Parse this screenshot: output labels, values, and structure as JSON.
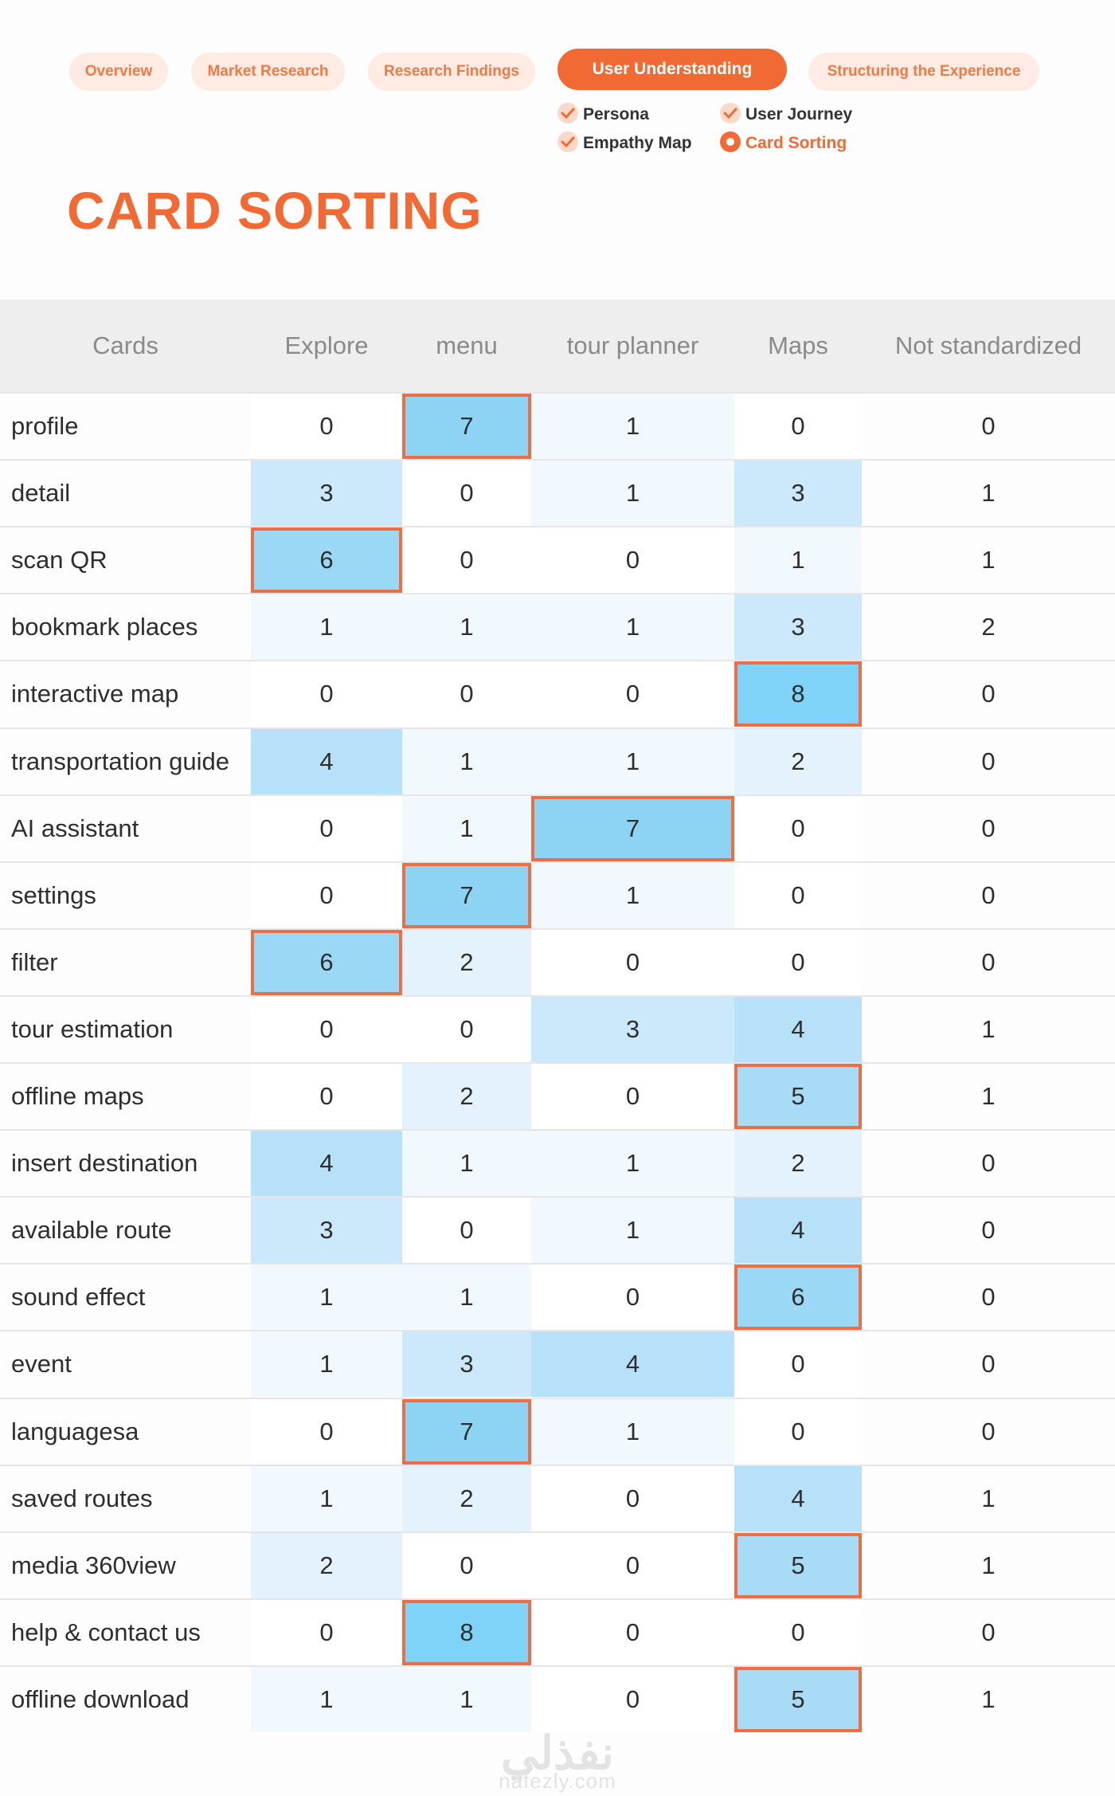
{
  "nav": {
    "tabs": [
      {
        "label": "Overview",
        "active": false
      },
      {
        "label": "Market Research",
        "active": false
      },
      {
        "label": "Research Findings",
        "active": false
      },
      {
        "label": "User Understanding",
        "active": true
      },
      {
        "label": "Structuring the Experience",
        "active": false
      }
    ],
    "subitems": [
      {
        "label": "Persona",
        "state": "done",
        "icon": "check-icon"
      },
      {
        "label": "User Journey",
        "state": "done",
        "icon": "check-icon"
      },
      {
        "label": "Empathy Map",
        "state": "done",
        "icon": "check-icon"
      },
      {
        "label": "Card Sorting",
        "state": "current",
        "icon": "radio-selected-icon"
      }
    ]
  },
  "page_title": "CARD SORTING",
  "colors": {
    "accent": "#f26a33",
    "pill_bg": "#fdebe4",
    "highlight_border": "#ed6d45",
    "heat_scale": [
      "#ffffff",
      "#f1f9fe",
      "#e3f2fd",
      "#cbe9fb",
      "#b6e1f8",
      "#a8dcf6",
      "#9bd8f5",
      "#8dd4f4",
      "#7fd2f8"
    ]
  },
  "table": {
    "columns": [
      "Cards",
      "Explore",
      "menu",
      "tour planner",
      "Maps",
      "Not standardized"
    ],
    "rows": [
      {
        "card": "profile",
        "values": [
          0,
          7,
          1,
          0,
          0
        ],
        "highlight": [
          1
        ]
      },
      {
        "card": "detail",
        "values": [
          3,
          0,
          1,
          3,
          1
        ],
        "highlight": []
      },
      {
        "card": "scan QR",
        "values": [
          6,
          0,
          0,
          1,
          1
        ],
        "highlight": [
          0
        ]
      },
      {
        "card": "bookmark places",
        "values": [
          1,
          1,
          1,
          3,
          2
        ],
        "highlight": []
      },
      {
        "card": "interactive map",
        "values": [
          0,
          0,
          0,
          8,
          0
        ],
        "highlight": [
          3
        ]
      },
      {
        "card": "transportation guide",
        "values": [
          4,
          1,
          1,
          2,
          0
        ],
        "highlight": []
      },
      {
        "card": "AI assistant",
        "values": [
          0,
          1,
          7,
          0,
          0
        ],
        "highlight": [
          2
        ]
      },
      {
        "card": "settings",
        "values": [
          0,
          7,
          1,
          0,
          0
        ],
        "highlight": [
          1
        ]
      },
      {
        "card": "filter",
        "values": [
          6,
          2,
          0,
          0,
          0
        ],
        "highlight": [
          0
        ]
      },
      {
        "card": "tour estimation",
        "values": [
          0,
          0,
          3,
          4,
          1
        ],
        "highlight": []
      },
      {
        "card": "offline maps",
        "values": [
          0,
          2,
          0,
          5,
          1
        ],
        "highlight": [
          3
        ]
      },
      {
        "card": "insert destination",
        "values": [
          4,
          1,
          1,
          2,
          0
        ],
        "highlight": []
      },
      {
        "card": "available route",
        "values": [
          3,
          0,
          1,
          4,
          0
        ],
        "highlight": []
      },
      {
        "card": "sound effect",
        "values": [
          1,
          1,
          0,
          6,
          0
        ],
        "highlight": [
          3
        ]
      },
      {
        "card": "event",
        "values": [
          1,
          3,
          4,
          0,
          0
        ],
        "highlight": []
      },
      {
        "card": "languagesa",
        "values": [
          0,
          7,
          1,
          0,
          0
        ],
        "highlight": [
          1
        ]
      },
      {
        "card": "saved routes",
        "values": [
          1,
          2,
          0,
          4,
          1
        ],
        "highlight": []
      },
      {
        "card": "media 360view",
        "values": [
          2,
          0,
          0,
          5,
          1
        ],
        "highlight": [
          3
        ]
      },
      {
        "card": "help & contact us",
        "values": [
          0,
          8,
          0,
          0,
          0
        ],
        "highlight": [
          1
        ]
      },
      {
        "card": "offline download",
        "values": [
          1,
          1,
          0,
          5,
          1
        ],
        "highlight": [
          3
        ]
      }
    ]
  },
  "watermark": {
    "arabic": "نفذلي",
    "latin": "nafezly.com"
  }
}
